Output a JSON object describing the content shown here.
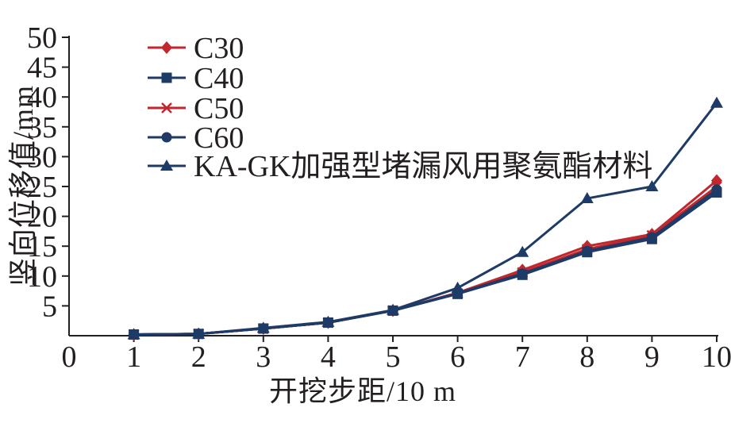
{
  "figure": {
    "background": "#ffffff",
    "axis_color": "#231f20"
  },
  "chart_data": {
    "type": "line",
    "title": "",
    "xlabel": "开挖步距/10 m",
    "ylabel": "竖向位移值/mm",
    "xlim": [
      0,
      10
    ],
    "ylim": [
      0,
      50
    ],
    "x_ticks": [
      0,
      1,
      2,
      3,
      4,
      5,
      6,
      7,
      8,
      9,
      10
    ],
    "y_ticks": [
      5,
      10,
      15,
      20,
      25,
      30,
      35,
      40,
      45,
      50
    ],
    "grid": false,
    "legend_position": "upper-left-inside",
    "x": [
      1,
      2,
      3,
      4,
      5,
      6,
      7,
      8,
      9,
      10
    ],
    "series": [
      {
        "name": "C30",
        "color": "#c1272d",
        "marker": "diamond",
        "values": [
          0.2,
          0.3,
          1.2,
          2.2,
          4.2,
          7.2,
          11.0,
          15.0,
          17.0,
          26.0
        ]
      },
      {
        "name": "C50",
        "color": "#c1272d",
        "marker": "x",
        "values": [
          0.2,
          0.3,
          1.2,
          2.2,
          4.2,
          7.1,
          10.6,
          14.5,
          16.8,
          25.0
        ]
      },
      {
        "name": "C40",
        "color": "#1e3a66",
        "marker": "square",
        "values": [
          0.2,
          0.3,
          1.2,
          2.2,
          4.2,
          7.0,
          10.2,
          14.0,
          16.2,
          24.0
        ]
      },
      {
        "name": "C60",
        "color": "#1e3a66",
        "marker": "circle",
        "values": [
          0.2,
          0.3,
          1.2,
          2.2,
          4.2,
          7.1,
          10.4,
          14.2,
          16.5,
          24.5
        ]
      },
      {
        "name": "KA-GK加强型堵漏风用聚氨酯材料",
        "color": "#1e3a66",
        "marker": "triangle",
        "values": [
          0.2,
          0.3,
          1.3,
          2.3,
          4.3,
          8.0,
          14.0,
          23.0,
          25.0,
          39.0
        ]
      }
    ],
    "legend_order": [
      "C30",
      "C40",
      "C50",
      "C60",
      "KA-GK加强型堵漏风用聚氨酯材料"
    ]
  }
}
